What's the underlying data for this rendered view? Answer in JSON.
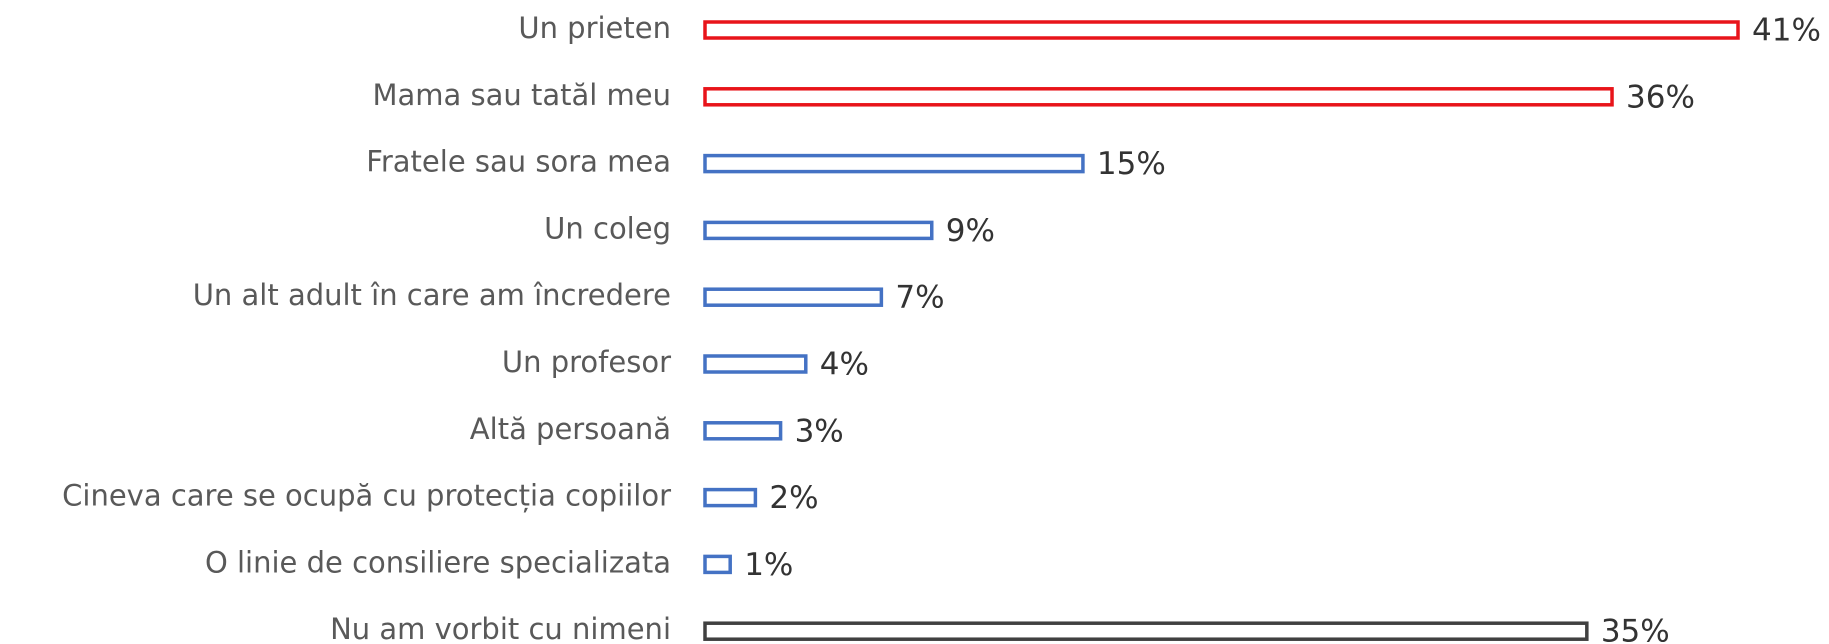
{
  "chart_data": {
    "type": "bar",
    "orientation": "horizontal",
    "categories": [
      "Un prieten",
      "Mama sau tatăl meu",
      "Fratele sau sora mea",
      "Un coleg",
      "Un alt adult în care am încredere",
      "Un profesor",
      "Altă persoană",
      "Cineva care se ocupă cu protecția copiilor",
      "O linie de consiliere specializata",
      "Nu am vorbit cu nimeni"
    ],
    "values": [
      41,
      36,
      15,
      9,
      7,
      4,
      3,
      2,
      1,
      35
    ],
    "value_labels": [
      "41%",
      "36%",
      "15%",
      "9%",
      "7%",
      "4%",
      "3%",
      "2%",
      "1%",
      "35%"
    ],
    "colors": [
      "#e8141a",
      "#e8141a",
      "#4472c4",
      "#4472c4",
      "#4472c4",
      "#4472c4",
      "#4472c4",
      "#4472c4",
      "#4472c4",
      "#404040"
    ]
  }
}
